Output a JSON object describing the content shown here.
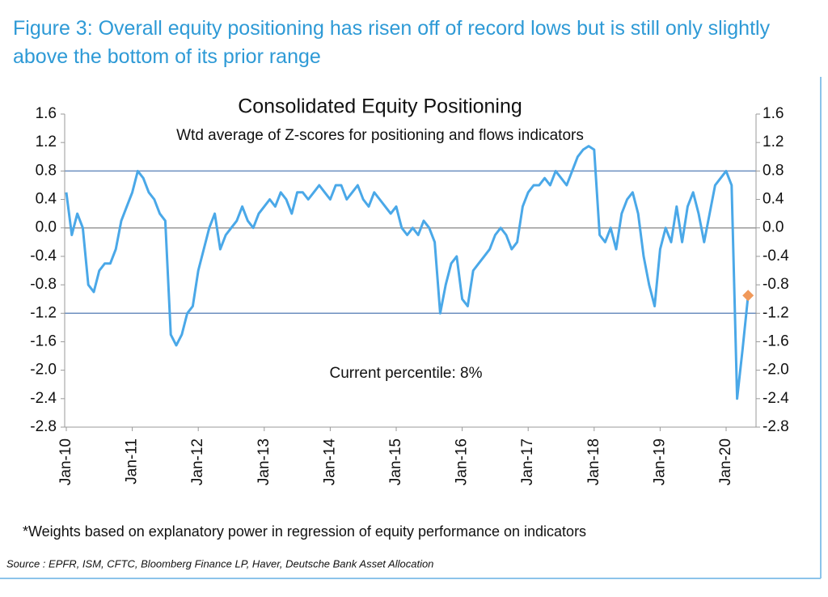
{
  "header": {
    "title": "Figure 3: Overall equity positioning has risen off of record lows but is still only slightly above the bottom of its prior range"
  },
  "chart_data": {
    "type": "line",
    "title": "Consolidated Equity Positioning",
    "subtitle": "Wtd average of Z-scores for positioning and flows indicators",
    "annotation": "Current percentile: 8%",
    "x": [
      "2010-01",
      "2010-02",
      "2010-03",
      "2010-04",
      "2010-05",
      "2010-06",
      "2010-07",
      "2010-08",
      "2010-09",
      "2010-10",
      "2010-11",
      "2010-12",
      "2011-01",
      "2011-02",
      "2011-03",
      "2011-04",
      "2011-05",
      "2011-06",
      "2011-07",
      "2011-08",
      "2011-09",
      "2011-10",
      "2011-11",
      "2011-12",
      "2012-01",
      "2012-02",
      "2012-03",
      "2012-04",
      "2012-05",
      "2012-06",
      "2012-07",
      "2012-08",
      "2012-09",
      "2012-10",
      "2012-11",
      "2012-12",
      "2013-01",
      "2013-02",
      "2013-03",
      "2013-04",
      "2013-05",
      "2013-06",
      "2013-07",
      "2013-08",
      "2013-09",
      "2013-10",
      "2013-11",
      "2013-12",
      "2014-01",
      "2014-02",
      "2014-03",
      "2014-04",
      "2014-05",
      "2014-06",
      "2014-07",
      "2014-08",
      "2014-09",
      "2014-10",
      "2014-11",
      "2014-12",
      "2015-01",
      "2015-02",
      "2015-03",
      "2015-04",
      "2015-05",
      "2015-06",
      "2015-07",
      "2015-08",
      "2015-09",
      "2015-10",
      "2015-11",
      "2015-12",
      "2016-01",
      "2016-02",
      "2016-03",
      "2016-04",
      "2016-05",
      "2016-06",
      "2016-07",
      "2016-08",
      "2016-09",
      "2016-10",
      "2016-11",
      "2016-12",
      "2017-01",
      "2017-02",
      "2017-03",
      "2017-04",
      "2017-05",
      "2017-06",
      "2017-07",
      "2017-08",
      "2017-09",
      "2017-10",
      "2017-11",
      "2017-12",
      "2018-01",
      "2018-02",
      "2018-03",
      "2018-04",
      "2018-05",
      "2018-06",
      "2018-07",
      "2018-08",
      "2018-09",
      "2018-10",
      "2018-11",
      "2018-12",
      "2019-01",
      "2019-02",
      "2019-03",
      "2019-04",
      "2019-05",
      "2019-06",
      "2019-07",
      "2019-08",
      "2019-09",
      "2019-10",
      "2019-11",
      "2019-12",
      "2020-01",
      "2020-02",
      "2020-03",
      "2020-04",
      "2020-05"
    ],
    "values": [
      0.5,
      -0.1,
      0.2,
      0.0,
      -0.8,
      -0.9,
      -0.6,
      -0.5,
      -0.5,
      -0.3,
      0.1,
      0.3,
      0.5,
      0.8,
      0.7,
      0.5,
      0.4,
      0.2,
      0.1,
      -1.5,
      -1.65,
      -1.5,
      -1.2,
      -1.1,
      -0.6,
      -0.3,
      0.0,
      0.2,
      -0.3,
      -0.1,
      0.0,
      0.1,
      0.3,
      0.1,
      0.0,
      0.2,
      0.3,
      0.4,
      0.3,
      0.5,
      0.4,
      0.2,
      0.5,
      0.5,
      0.4,
      0.5,
      0.6,
      0.5,
      0.4,
      0.6,
      0.6,
      0.4,
      0.5,
      0.6,
      0.4,
      0.3,
      0.5,
      0.4,
      0.3,
      0.2,
      0.3,
      0.0,
      -0.1,
      0.0,
      -0.1,
      0.1,
      0.0,
      -0.2,
      -1.2,
      -0.8,
      -0.5,
      -0.4,
      -1.0,
      -1.1,
      -0.6,
      -0.5,
      -0.4,
      -0.3,
      -0.1,
      0.0,
      -0.1,
      -0.3,
      -0.2,
      0.3,
      0.5,
      0.6,
      0.6,
      0.7,
      0.6,
      0.8,
      0.7,
      0.6,
      0.8,
      1.0,
      1.1,
      1.15,
      1.1,
      -0.1,
      -0.2,
      0.0,
      -0.3,
      0.2,
      0.4,
      0.5,
      0.2,
      -0.4,
      -0.8,
      -1.1,
      -0.3,
      0.0,
      -0.2,
      0.3,
      -0.2,
      0.3,
      0.5,
      0.2,
      -0.2,
      0.2,
      0.6,
      0.7,
      0.8,
      0.6,
      -2.4,
      -1.7,
      -0.95
    ],
    "color": "#4aa8e8",
    "last_marker_color": "#f0995a",
    "xticks": [
      {
        "value": "2010-01",
        "label": "Jan-10"
      },
      {
        "value": "2011-01",
        "label": "Jan-11"
      },
      {
        "value": "2012-01",
        "label": "Jan-12"
      },
      {
        "value": "2013-01",
        "label": "Jan-13"
      },
      {
        "value": "2014-01",
        "label": "Jan-14"
      },
      {
        "value": "2015-01",
        "label": "Jan-15"
      },
      {
        "value": "2016-01",
        "label": "Jan-16"
      },
      {
        "value": "2017-01",
        "label": "Jan-17"
      },
      {
        "value": "2018-01",
        "label": "Jan-18"
      },
      {
        "value": "2019-01",
        "label": "Jan-19"
      },
      {
        "value": "2020-01",
        "label": "Jan-20"
      }
    ],
    "ylim": [
      -2.8,
      1.6
    ],
    "yticks": [
      1.6,
      1.2,
      0.8,
      0.4,
      {
        "value": 0,
        "label": "0.0"
      },
      -0.4,
      -0.8,
      -1.2,
      -1.6,
      {
        "value": -2,
        "label": "-2.0"
      },
      -2.4,
      -2.8
    ],
    "y2lim": [
      -2.8,
      1.6
    ],
    "y2ticks": [
      1.6,
      1.2,
      0.8,
      0.4,
      {
        "value": 0,
        "label": "0.0"
      },
      -0.4,
      -0.8,
      -1.2,
      -1.6,
      {
        "value": -2,
        "label": "-2.0"
      },
      -2.4,
      -2.8
    ],
    "hlines": [
      0.8,
      -1.2
    ],
    "baseline": 0,
    "footnote": "*Weights based on explanatory power in regression of equity performance on indicators",
    "source": "Source : EPFR, ISM, CFTC, Bloomberg Finance LP, Haver, Deutsche Bank Asset Allocation"
  }
}
